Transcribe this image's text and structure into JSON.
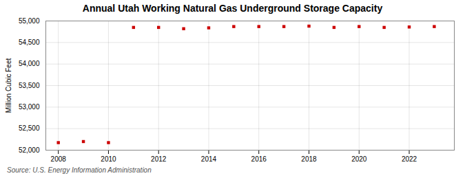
{
  "chart_data": {
    "type": "scatter",
    "title": "Annual Utah Working Natural Gas Underground Storage Capacity",
    "ylabel": "Million Cubic Feet",
    "annotation": "Source: U.S. Energy Information Administration",
    "x": [
      2008,
      2009,
      2010,
      2011,
      2012,
      2013,
      2014,
      2015,
      2016,
      2017,
      2018,
      2019,
      2020,
      2021,
      2022,
      2023
    ],
    "values": [
      52175,
      52200,
      52175,
      54850,
      54850,
      54820,
      54840,
      54870,
      54870,
      54870,
      54880,
      54850,
      54870,
      54850,
      54860,
      54870
    ],
    "color": "#cc0000",
    "marker": "square",
    "xlim": [
      2007.5,
      2023.8
    ],
    "xticks": [
      2008,
      2010,
      2012,
      2014,
      2016,
      2018,
      2020,
      2022
    ],
    "ylim": [
      52000,
      55000
    ],
    "yticks": [
      {
        "value": 52000,
        "label": "52,000"
      },
      {
        "value": 52500,
        "label": "52,500"
      },
      {
        "value": 53000,
        "label": "53,000"
      },
      {
        "value": 53500,
        "label": "53,500"
      },
      {
        "value": 54000,
        "label": "54,000"
      },
      {
        "value": 54500,
        "label": "54,500"
      },
      {
        "value": 55000,
        "label": "55,000"
      }
    ],
    "grid": true
  }
}
